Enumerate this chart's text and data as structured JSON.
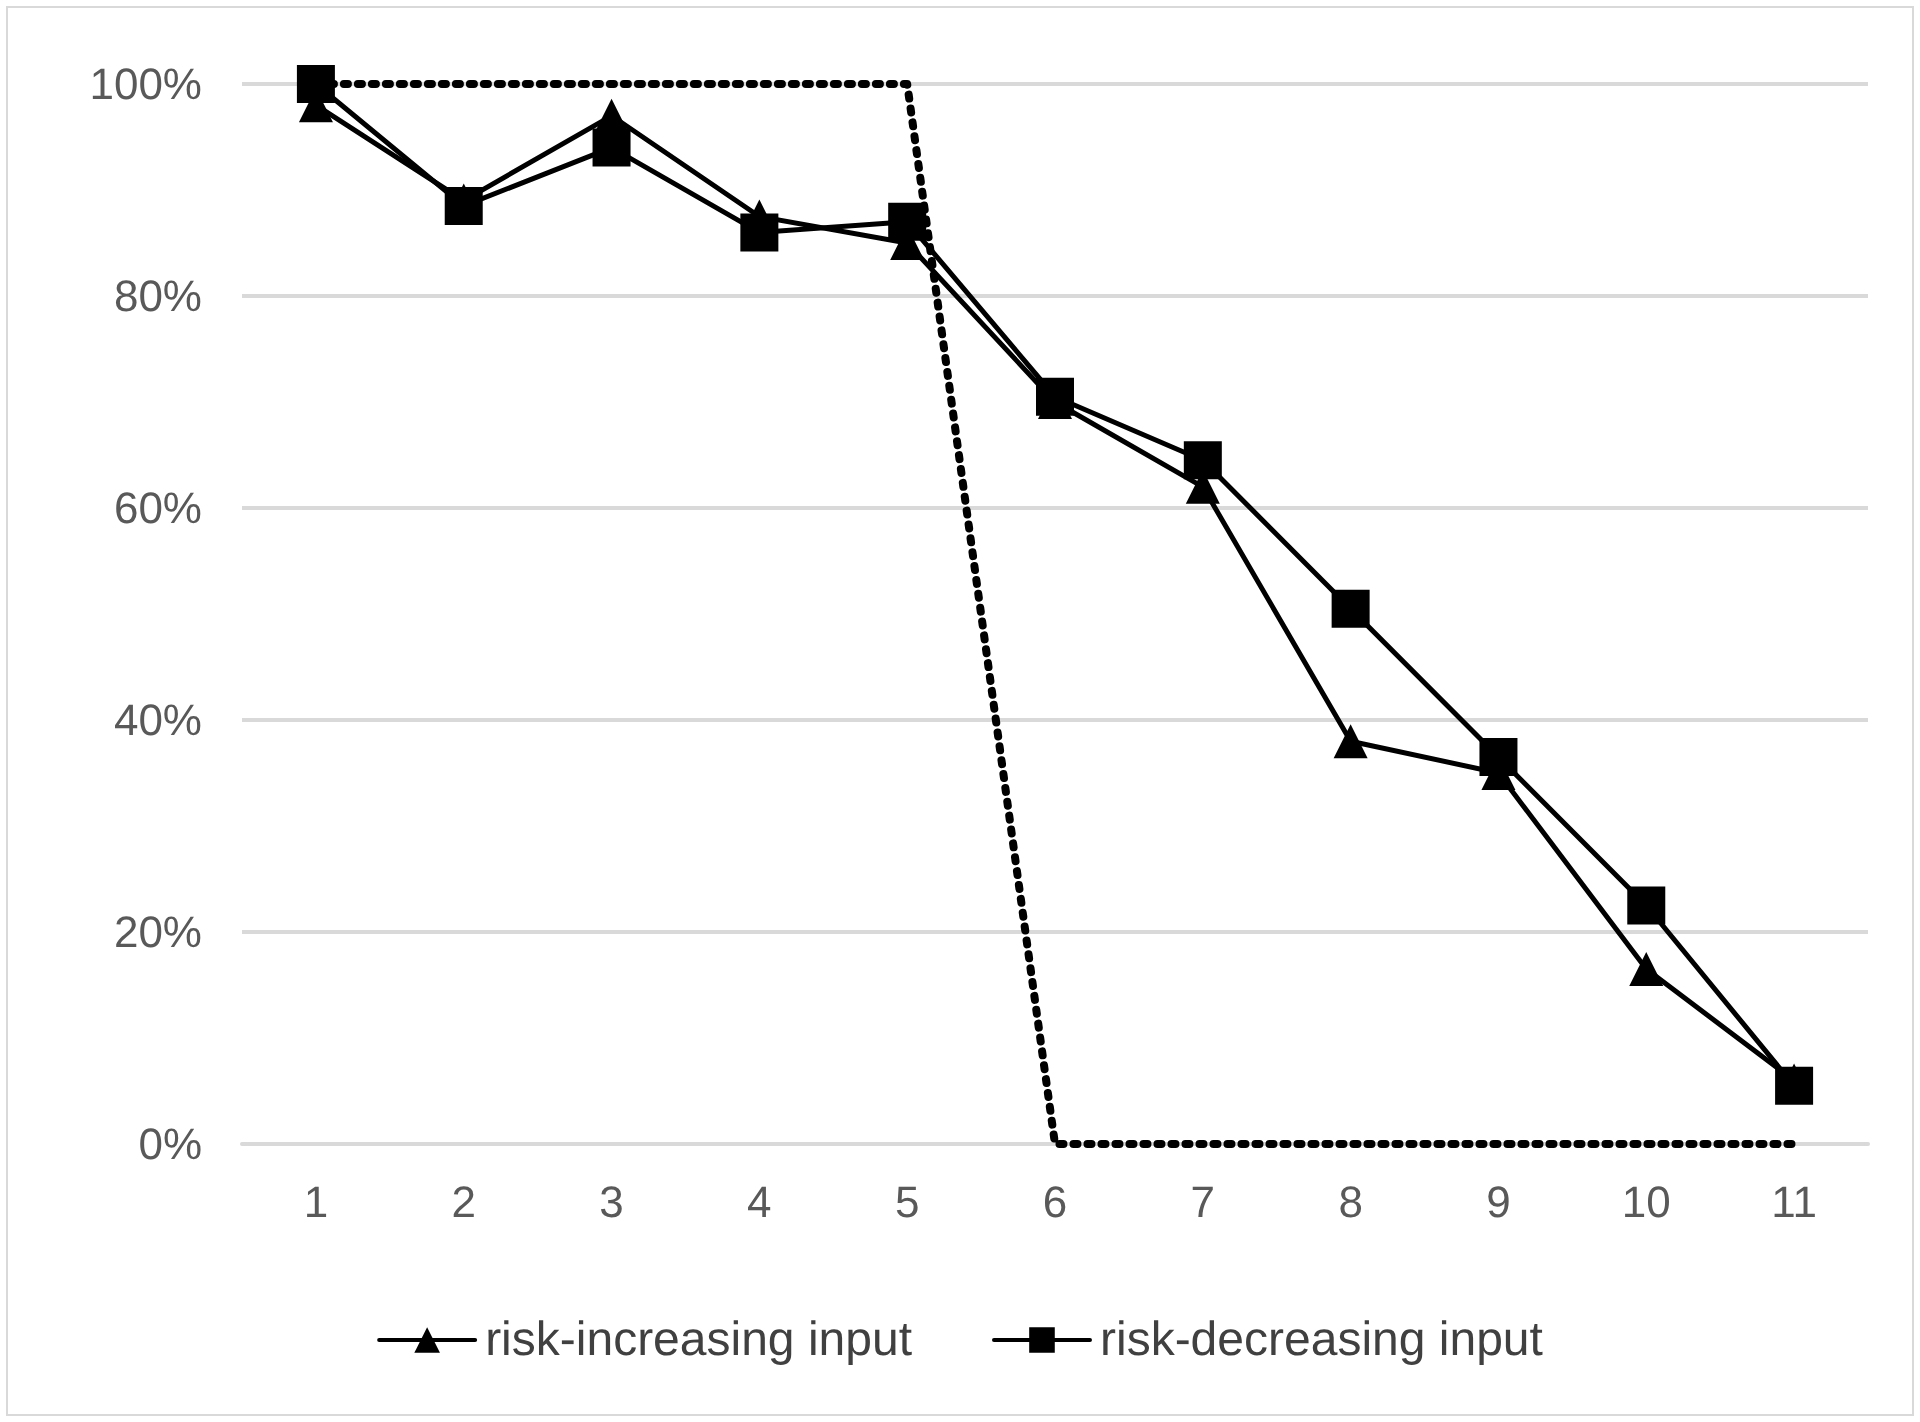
{
  "chart_data": {
    "type": "line",
    "categories": [
      "1",
      "2",
      "3",
      "4",
      "5",
      "6",
      "7",
      "8",
      "9",
      "10",
      "11"
    ],
    "series": [
      {
        "name": "risk-increasing input",
        "color": "#000000",
        "marker": "triangle",
        "line_style": "solid",
        "values": [
          98,
          89,
          97,
          87.5,
          85,
          70,
          62,
          38,
          35,
          16.5,
          6
        ]
      },
      {
        "name": "risk-decreasing input",
        "color": "#000000",
        "marker": "square",
        "line_style": "solid",
        "values": [
          100,
          88.5,
          94,
          86,
          87,
          70.5,
          64.5,
          50.5,
          36.5,
          22.5,
          5.5
        ]
      },
      {
        "color": "#000000",
        "marker": "none",
        "line_style": "dotted",
        "values": [
          100,
          100,
          100,
          100,
          100,
          0,
          0,
          0,
          0,
          0,
          0
        ]
      }
    ],
    "ylim": [
      0,
      100
    ],
    "yticks": [
      {
        "value": 0,
        "label": "0%"
      },
      {
        "value": 20,
        "label": "20%"
      },
      {
        "value": 40,
        "label": "40%"
      },
      {
        "value": 60,
        "label": "60%"
      },
      {
        "value": 80,
        "label": "80%"
      },
      {
        "value": 100,
        "label": "100%"
      }
    ],
    "grid": "y",
    "legend": "bottom"
  }
}
